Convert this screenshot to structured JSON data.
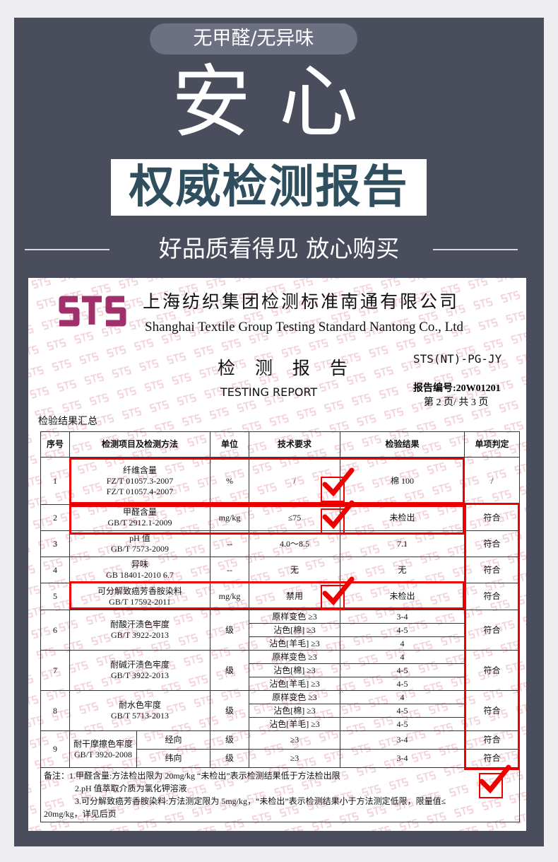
{
  "banner": {
    "pill": "无甲醛/无异味",
    "headline": "安心",
    "box_title": "权威检测报告",
    "subtitle": "好品质看得见 放心购买"
  },
  "report": {
    "logo_text": "STS",
    "company_cn": "上海纺织集团检测标准南通有限公司",
    "company_en": "Shanghai Textile Group Testing Standard Nantong Co., Ltd",
    "title_cn": "检 测 报 告",
    "title_en": "TESTING  REPORT",
    "doc_code": "STS(NT)-PG-JY",
    "report_no": "报告编号:20W01201",
    "page": "第 2 页/ 共 3 页",
    "summary_label": "检验结果汇总",
    "watermark": "STS",
    "headers": [
      "序号",
      "检测项目及检测方法",
      "单位",
      "技术要求",
      "检验结果",
      "单项判定"
    ],
    "rows": [
      {
        "no": "1",
        "item": [
          "纤维含量",
          "FZ/T 01057.3-2007",
          "FZ/T 01057.4-2007"
        ],
        "unit": "%",
        "req": "/",
        "result": "棉    100",
        "verdict": "/"
      },
      {
        "no": "2",
        "item": [
          "甲醛含量",
          "GB/T 2912.1-2009"
        ],
        "unit": "mg/kg",
        "req": "≤75",
        "result": "未检出",
        "verdict": "符合"
      },
      {
        "no": "3",
        "item": [
          "pH 值",
          "GB/T 7573-2009"
        ],
        "unit": "--",
        "req": "4.0～8.5",
        "result": "7.1",
        "verdict": "符合"
      },
      {
        "no": "4",
        "item": [
          "异味",
          "GB 18401-2010 6.7"
        ],
        "unit": "--",
        "req": "无",
        "result": "无",
        "verdict": "符合"
      },
      {
        "no": "5",
        "item": [
          "可分解致癌芳香胺染料",
          "GB/T 17592-2011"
        ],
        "unit": "mg/kg",
        "req": "禁用",
        "result": "未检出",
        "verdict": "符合"
      }
    ],
    "multi_rows": [
      {
        "no": "6",
        "item": [
          "耐酸汗渍色牢度",
          "GB/T 3922-2013"
        ],
        "unit": "级",
        "subs": [
          {
            "req": "原样变色  ≥3",
            "result": "3-4"
          },
          {
            "req": "沾色[棉]  ≥3",
            "result": "4-5"
          },
          {
            "req": "沾色[羊毛]  ≥3",
            "result": "4"
          }
        ],
        "verdict": "符合"
      },
      {
        "no": "7",
        "item": [
          "耐碱汗渍色牢度",
          "GB/T 3922-2013"
        ],
        "unit": "级",
        "subs": [
          {
            "req": "原样变色  ≥3",
            "result": "4"
          },
          {
            "req": "沾色[棉]  ≥3",
            "result": "4-5"
          },
          {
            "req": "沾色[羊毛]  ≥3",
            "result": "4-5"
          }
        ],
        "verdict": "符合"
      },
      {
        "no": "8",
        "item": [
          "耐水色牢度",
          "GB/T 5713-2013"
        ],
        "unit": "级",
        "subs": [
          {
            "req": "原样变色  ≥3",
            "result": "4"
          },
          {
            "req": "沾色[棉]  ≥3",
            "result": "4-5"
          },
          {
            "req": "沾色[羊毛]  ≥3",
            "result": "4-5"
          }
        ],
        "verdict": "符合"
      }
    ],
    "rub_row": {
      "no": "9",
      "item": [
        "耐干摩擦色牢度",
        "GB/T 3920-2008"
      ],
      "subs": [
        {
          "dir": "经向",
          "unit": "级",
          "req": "≥3",
          "result": "3-4",
          "verdict": "符合"
        },
        {
          "dir": "纬向",
          "unit": "级",
          "req": "≥3",
          "result": "3-4",
          "verdict": "符合"
        }
      ]
    },
    "notes": [
      "备注：1.甲醛含量:方法检出限为 20mg/kg “未检出”表示检测结果低于方法检出限",
      "2.pH 值萃取介质为氯化钾溶液",
      "3.可分解致癌芳香胺染料:方法测定限为 5mg/kg，“未检出”表示检测结果小于方法测定低限，限量值≤",
      "20mg/kg，详见后页"
    ]
  },
  "colors": {
    "panel": "#4a4d5c",
    "highlight": "#e00000",
    "title_box_text": "#2f4f5f",
    "logo": "#a0306a"
  }
}
